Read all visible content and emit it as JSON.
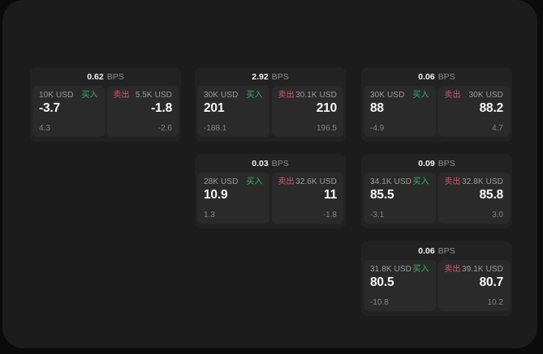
{
  "labels": {
    "bps_unit": "BPS",
    "buy": "买入",
    "sell": "卖出"
  },
  "colors": {
    "buy_accent": "#3ead67",
    "sell_accent": "#d4566a",
    "panel_bg": "#1c1c1d",
    "card_bg": "#222223",
    "tile_bg": "#2a2a2b"
  },
  "cards": [
    {
      "bps": "0.62",
      "col": 1,
      "row": 1,
      "buy": {
        "notional": "10K USD",
        "value": "-3.7",
        "sub": "4.3"
      },
      "sell": {
        "notional": "5.5K USD",
        "value": "-1.8",
        "sub": "-2.6"
      }
    },
    {
      "bps": "2.92",
      "col": 2,
      "row": 1,
      "buy": {
        "notional": "30K USD",
        "value": "201",
        "sub": "-188.1"
      },
      "sell": {
        "notional": "30.1K USD",
        "value": "210",
        "sub": "196.5"
      }
    },
    {
      "bps": "0.06",
      "col": 3,
      "row": 1,
      "buy": {
        "notional": "30K USD",
        "value": "88",
        "sub": "-4.9"
      },
      "sell": {
        "notional": "30K USD",
        "value": "88.2",
        "sub": "4.7"
      }
    },
    {
      "bps": "0.03",
      "col": 2,
      "row": 2,
      "buy": {
        "notional": "28K USD",
        "value": "10.9",
        "sub": "1.3"
      },
      "sell": {
        "notional": "32.6K USD",
        "value": "11",
        "sub": "-1.8"
      }
    },
    {
      "bps": "0.09",
      "col": 3,
      "row": 2,
      "buy": {
        "notional": "34.1K USD",
        "value": "85.5",
        "sub": "-3.1"
      },
      "sell": {
        "notional": "32.8K USD",
        "value": "85.8",
        "sub": "3.0"
      }
    },
    {
      "bps": "0.06",
      "col": 3,
      "row": 3,
      "buy": {
        "notional": "31.8K USD",
        "value": "80.5",
        "sub": "-10.8"
      },
      "sell": {
        "notional": "39.1K USD",
        "value": "80.7",
        "sub": "10.2"
      }
    }
  ]
}
